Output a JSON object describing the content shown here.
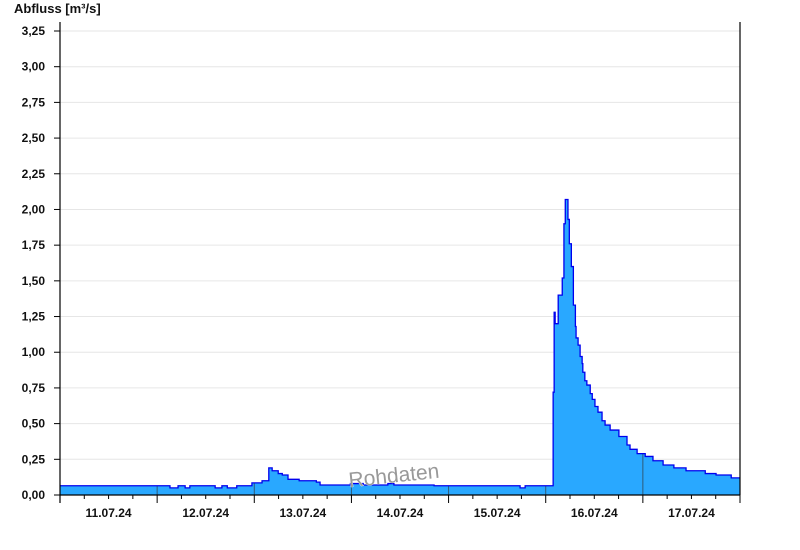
{
  "chart_data": {
    "type": "area",
    "title": "",
    "ylabel": "Abfluss [m³/s]",
    "xlabel": "",
    "watermark": "Rohdaten",
    "xlim": [
      "2024-07-11T00:00",
      "2024-07-18T00:00"
    ],
    "ylim": [
      0,
      3.3
    ],
    "yticks": [
      0,
      0.25,
      0.5,
      0.75,
      1.0,
      1.25,
      1.5,
      1.75,
      2.0,
      2.25,
      2.5,
      2.75,
      3.0,
      3.25
    ],
    "ytick_labels": [
      "0,00",
      "0,25",
      "0,50",
      "0,75",
      "1,00",
      "1,25",
      "1,50",
      "1,75",
      "2,00",
      "2,25",
      "2,50",
      "2,75",
      "3,00",
      "3,25"
    ],
    "xtick_labels": [
      {
        "date": "2024-07-11T12:00",
        "label": "11.07.24"
      },
      {
        "date": "2024-07-12T12:00",
        "label": "12.07.24"
      },
      {
        "date": "2024-07-13T12:00",
        "label": "13.07.24"
      },
      {
        "date": "2024-07-14T12:00",
        "label": "14.07.24"
      },
      {
        "date": "2024-07-15T12:00",
        "label": "15.07.24"
      },
      {
        "date": "2024-07-16T12:00",
        "label": "16.07.24"
      },
      {
        "date": "2024-07-17T12:00",
        "label": "17.07.24"
      }
    ],
    "grid": true,
    "colors": {
      "fill": "#29a8ff",
      "line": "#0000ee",
      "grid": "#e6e6e6"
    },
    "step": true,
    "points": [
      [
        "2024-07-11T00:00",
        0.065
      ],
      [
        "2024-07-12T03:10",
        0.05
      ],
      [
        "2024-07-12T05:10",
        0.065
      ],
      [
        "2024-07-12T06:55",
        0.05
      ],
      [
        "2024-07-12T08:05",
        0.065
      ],
      [
        "2024-07-12T14:20",
        0.05
      ],
      [
        "2024-07-12T16:00",
        0.065
      ],
      [
        "2024-07-12T17:20",
        0.05
      ],
      [
        "2024-07-12T19:40",
        0.065
      ],
      [
        "2024-07-12T23:25",
        0.085
      ],
      [
        "2024-07-13T01:55",
        0.1
      ],
      [
        "2024-07-13T03:35",
        0.19
      ],
      [
        "2024-07-13T04:25",
        0.17
      ],
      [
        "2024-07-13T05:55",
        0.15
      ],
      [
        "2024-07-13T06:55",
        0.14
      ],
      [
        "2024-07-13T08:20",
        0.11
      ],
      [
        "2024-07-13T11:05",
        0.1
      ],
      [
        "2024-07-13T15:20",
        0.09
      ],
      [
        "2024-07-13T16:15",
        0.07
      ],
      [
        "2024-07-13T23:45",
        0.08
      ],
      [
        "2024-07-14T02:55",
        0.07
      ],
      [
        "2024-07-14T09:00",
        0.08
      ],
      [
        "2024-07-14T10:30",
        0.07
      ],
      [
        "2024-07-14T20:25",
        0.065
      ],
      [
        "2024-07-15T17:40",
        0.05
      ],
      [
        "2024-07-15T18:55",
        0.065
      ],
      [
        "2024-07-16T01:50",
        0.72
      ],
      [
        "2024-07-16T02:05",
        1.28
      ],
      [
        "2024-07-16T02:20",
        1.2
      ],
      [
        "2024-07-16T03:05",
        1.4
      ],
      [
        "2024-07-16T04:05",
        1.52
      ],
      [
        "2024-07-16T04:30",
        1.9
      ],
      [
        "2024-07-16T04:50",
        2.07
      ],
      [
        "2024-07-16T05:30",
        1.93
      ],
      [
        "2024-07-16T05:50",
        1.76
      ],
      [
        "2024-07-16T06:20",
        1.6
      ],
      [
        "2024-07-16T06:50",
        1.33
      ],
      [
        "2024-07-16T07:20",
        1.18
      ],
      [
        "2024-07-16T07:30",
        1.1
      ],
      [
        "2024-07-16T08:00",
        1.05
      ],
      [
        "2024-07-16T08:30",
        0.97
      ],
      [
        "2024-07-16T09:00",
        0.92
      ],
      [
        "2024-07-16T09:10",
        0.86
      ],
      [
        "2024-07-16T09:40",
        0.8
      ],
      [
        "2024-07-16T10:10",
        0.77
      ],
      [
        "2024-07-16T11:00",
        0.71
      ],
      [
        "2024-07-16T11:30",
        0.67
      ],
      [
        "2024-07-16T12:10",
        0.62
      ],
      [
        "2024-07-16T12:55",
        0.58
      ],
      [
        "2024-07-16T13:55",
        0.52
      ],
      [
        "2024-07-16T14:40",
        0.49
      ],
      [
        "2024-07-16T15:55",
        0.455
      ],
      [
        "2024-07-16T18:05",
        0.41
      ],
      [
        "2024-07-16T20:05",
        0.35
      ],
      [
        "2024-07-16T20:50",
        0.32
      ],
      [
        "2024-07-16T22:35",
        0.29
      ],
      [
        "2024-07-17T00:35",
        0.27
      ],
      [
        "2024-07-17T02:30",
        0.24
      ],
      [
        "2024-07-17T05:00",
        0.21
      ],
      [
        "2024-07-17T07:40",
        0.19
      ],
      [
        "2024-07-17T10:40",
        0.17
      ],
      [
        "2024-07-17T15:25",
        0.15
      ],
      [
        "2024-07-17T18:05",
        0.14
      ],
      [
        "2024-07-17T21:50",
        0.12
      ],
      [
        "2024-07-18T00:00",
        0.12
      ]
    ]
  }
}
